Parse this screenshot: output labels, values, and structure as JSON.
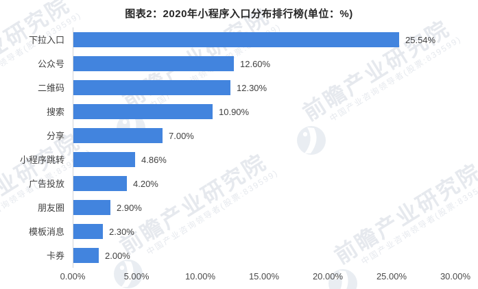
{
  "title": "图表2：2020年小程序入口分布排行榜(单位：%)",
  "chart_data": {
    "type": "bar",
    "orientation": "horizontal",
    "title": "图表2：2020年小程序入口分布排行榜(单位：%)",
    "categories": [
      "下拉入口",
      "公众号",
      "二维码",
      "搜索",
      "分享",
      "小程序跳转",
      "广告投放",
      "朋友圈",
      "模板消息",
      "卡券"
    ],
    "values": [
      25.54,
      12.6,
      12.3,
      10.9,
      7.0,
      4.86,
      4.2,
      2.9,
      2.3,
      2.0
    ],
    "value_labels": [
      "25.54%",
      "12.60%",
      "12.30%",
      "10.90%",
      "7.00%",
      "4.86%",
      "4.20%",
      "2.90%",
      "2.30%",
      "2.00%"
    ],
    "xlabel": "",
    "ylabel": "",
    "xlim": [
      0,
      30
    ],
    "x_tick_values": [
      0,
      5,
      10,
      15,
      20,
      25,
      30
    ],
    "x_tick_labels": [
      "0.00%",
      "5.00%",
      "10.00%",
      "15.00%",
      "20.00%",
      "25.00%",
      "30.00%"
    ],
    "grid": false,
    "legend": false,
    "bars_sorted_descending": true
  },
  "colors": {
    "bar": "#4284de",
    "title_text": "#262626",
    "label_text": "#3f3f3f",
    "tick_text": "#4a4a4a",
    "axis_line": "#d0d3d8",
    "watermark_text": "#e6e9ee",
    "watermark_logo": "#e9edf2"
  },
  "watermark": {
    "brand": "前瞻产业研究院",
    "tagline": "中国产业咨询领导者(股票:839599)",
    "logo": "qianzhan-globe-icon"
  }
}
